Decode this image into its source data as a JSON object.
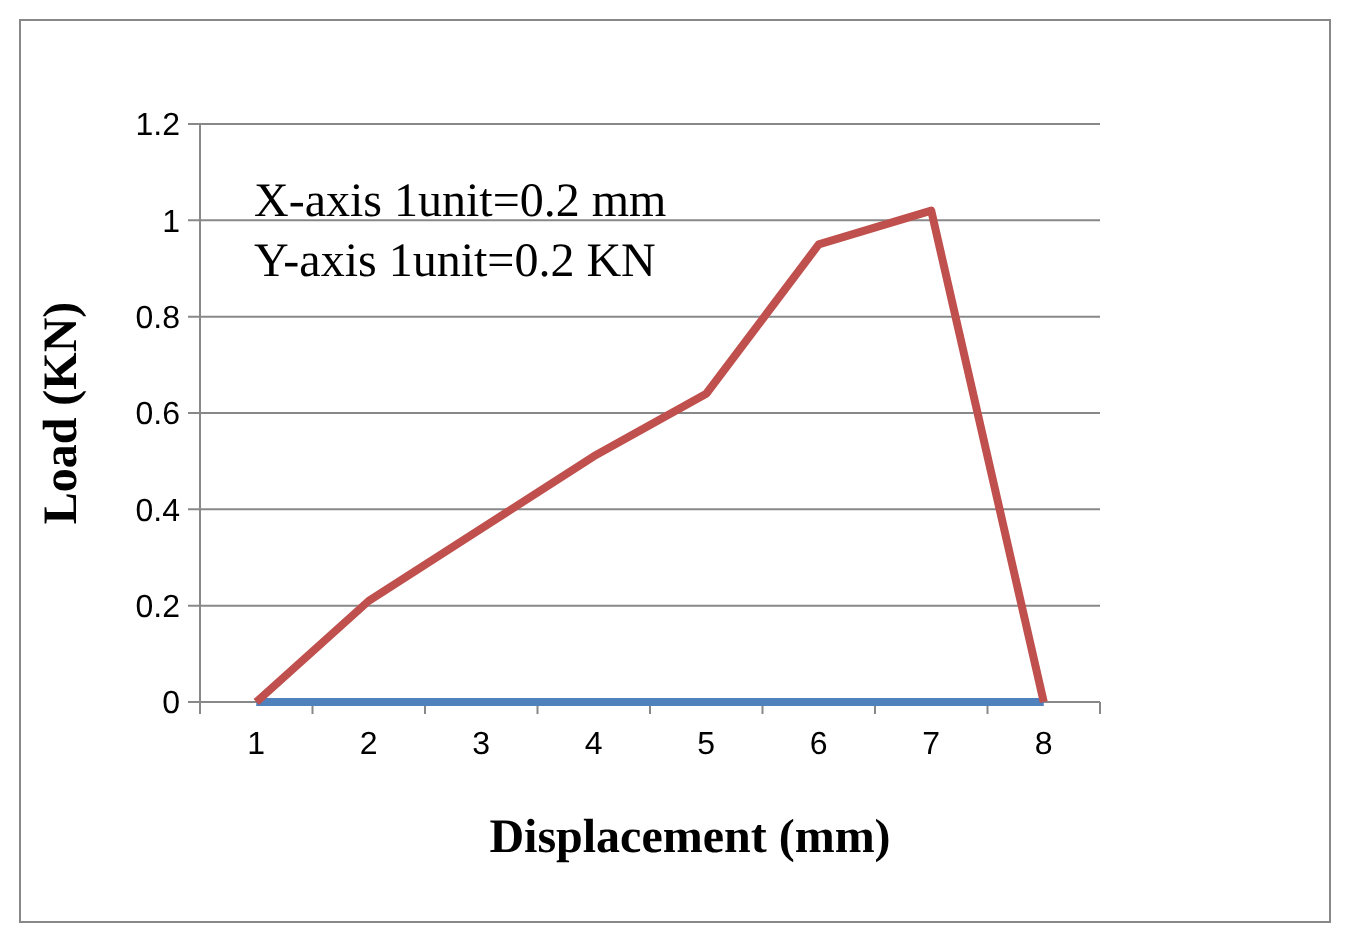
{
  "chart_data": {
    "type": "line",
    "xlabel": "Displacement (mm)",
    "ylabel": "Load (KN)",
    "categories": [
      "1",
      "2",
      "3",
      "4",
      "5",
      "6",
      "7",
      "8"
    ],
    "series": [
      {
        "color": "#4f81bd",
        "values": [
          0,
          0,
          0,
          0,
          0,
          0,
          0,
          0
        ]
      },
      {
        "color": "#c0504d",
        "values": [
          0,
          0.21,
          0.36,
          0.51,
          0.64,
          0.95,
          1.02,
          0
        ]
      }
    ],
    "ylim": [
      0,
      1.2
    ],
    "yticks": [
      0,
      0.2,
      0.4,
      0.6,
      0.8,
      1,
      1.2
    ],
    "grid": "y",
    "marker": "none",
    "line_style": "solid",
    "annotations": [
      "X-axis 1unit=0.2 mm",
      "Y-axis 1unit=0.2 KN"
    ]
  }
}
